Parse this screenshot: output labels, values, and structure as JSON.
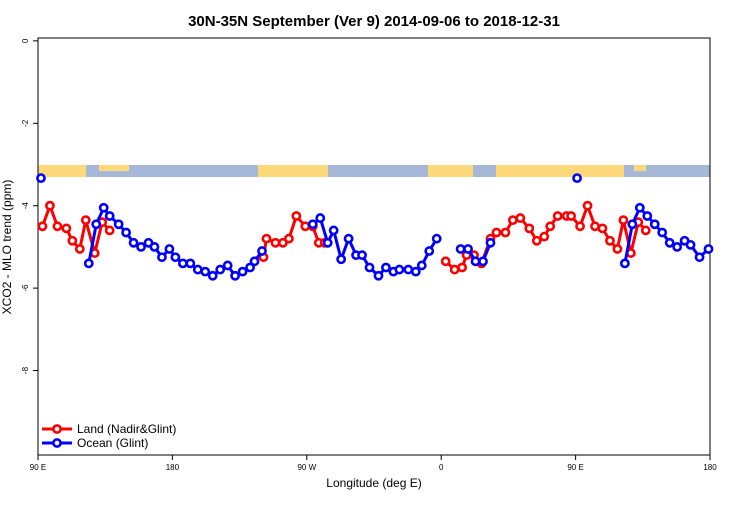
{
  "chart_data": {
    "type": "line",
    "title": "30N-35N September (Ver 9)   2014-09-06 to 2018-12-31",
    "x_label": "Longitude (deg E)",
    "y_label": "XCO2 - MLO trend (ppm)",
    "xlim": [
      90,
      540
    ],
    "ylim": [
      -10.05,
      0.07
    ],
    "xticks": [
      {
        "value": 90,
        "label": "90 E"
      },
      180,
      {
        "value": 270,
        "label": "90 W"
      },
      {
        "value": 360,
        "label": "0"
      },
      {
        "value": 450,
        "label": "90 E"
      },
      {
        "value": 540,
        "label": "180"
      }
    ],
    "yticks": [
      0,
      -2,
      -4,
      -6,
      -8
    ],
    "legend": "bottom-left",
    "series": [
      {
        "name": "Land (Nadir&Glint)",
        "color": "#ff0000",
        "x": [
          93,
          98,
          103,
          109,
          113,
          118,
          122,
          128,
          133,
          138,
          190,
          241,
          243,
          249,
          254,
          258,
          263,
          269,
          274,
          278,
          282,
          320,
          363,
          369,
          374,
          377,
          382,
          387,
          393,
          397,
          403,
          408,
          413,
          419,
          424,
          429,
          433,
          438,
          444,
          447,
          453,
          458,
          463,
          468,
          473,
          478,
          482,
          487,
          492,
          497
        ],
        "values": [
          -4.5,
          -4.0,
          -4.5,
          -4.55,
          -4.85,
          -5.05,
          -4.35,
          -5.15,
          -4.4,
          -4.6,
          null,
          -5.25,
          -4.8,
          -4.9,
          -4.9,
          -4.8,
          -4.25,
          -4.5,
          -4.5,
          -4.9,
          -4.9,
          null,
          -5.35,
          -5.55,
          -5.5,
          -5.2,
          -5.2,
          -5.4,
          -4.8,
          -4.65,
          -4.65,
          -4.35,
          -4.3,
          -4.55,
          -4.85,
          -4.75,
          -4.5,
          -4.25,
          -4.25,
          -4.25,
          -4.5,
          -4.0,
          -4.5,
          -4.55,
          -4.85,
          -5.05,
          -4.35,
          -5.15,
          -4.4,
          -4.6
        ]
      },
      {
        "name": "Ocean (Glint)",
        "color": "#0000ff",
        "x": [
          92,
          108,
          124,
          129,
          134,
          138,
          144,
          149,
          154,
          159,
          164,
          168,
          173,
          178,
          182,
          187,
          192,
          197,
          202,
          207,
          212,
          217,
          222,
          227,
          232,
          235,
          240,
          257,
          274,
          279,
          284,
          288,
          293,
          298,
          303,
          307,
          312,
          318,
          323,
          328,
          332,
          338,
          343,
          347,
          352,
          357,
          365,
          373,
          378,
          383,
          388,
          393,
          420,
          451,
          467,
          483,
          488,
          493,
          498,
          503,
          508,
          513,
          518,
          523,
          527,
          533,
          539
        ],
        "values": [
          -3.33,
          null,
          -5.4,
          -4.45,
          -4.05,
          -4.25,
          -4.45,
          -4.65,
          -4.9,
          -5.0,
          -4.9,
          -5.0,
          -5.25,
          -5.05,
          -5.25,
          -5.4,
          -5.4,
          -5.55,
          -5.6,
          -5.7,
          -5.55,
          -5.45,
          -5.7,
          -5.6,
          -5.5,
          -5.35,
          -5.1,
          null,
          -4.45,
          -4.3,
          -4.9,
          -4.6,
          -5.3,
          -4.8,
          -5.2,
          -5.2,
          -5.5,
          -5.7,
          -5.5,
          -5.6,
          -5.55,
          -5.55,
          -5.6,
          -5.45,
          -5.1,
          -4.8,
          null,
          -5.05,
          -5.05,
          -5.35,
          -5.35,
          -4.9,
          null,
          -3.33,
          null,
          -5.4,
          -4.45,
          -4.05,
          -4.25,
          -4.45,
          -4.65,
          -4.9,
          -5.0,
          -4.85,
          -4.95,
          -5.25,
          -5.05
        ]
      }
    ]
  }
}
